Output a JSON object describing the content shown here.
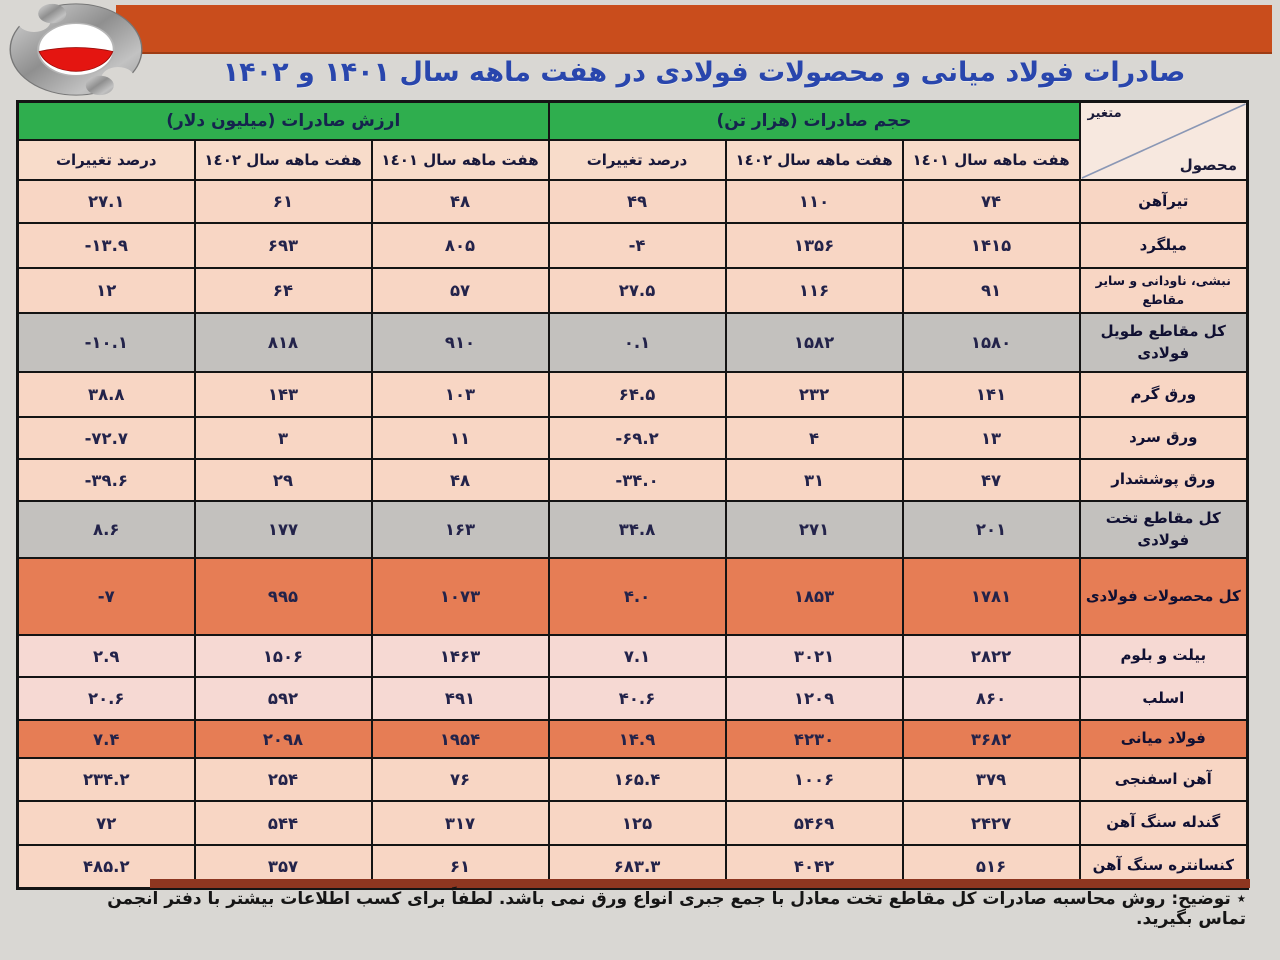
{
  "theme": {
    "banner_orange": "#c94d1c",
    "header_green": "#2fae4e",
    "row_pink": "#f8d6c4",
    "row_pink_light": "#f6d9d3",
    "row_gray": "#c3c1be",
    "row_orange": "#e67d55",
    "subheader_pink": "#f8dcca",
    "corner_bg": "#f7e8df",
    "title_blue": "#2946ad",
    "text_navy": "#23234a",
    "border_black": "#141414",
    "shadow_brown": "#8e3620",
    "page_bg": "#d9d7d3",
    "logo_red": "#e41511"
  },
  "header": {
    "title": "صادرات فولاد میانی و محصولات فولادی در هفت ماهه سال ۱۴۰۱ و ۱۴۰۲"
  },
  "table": {
    "corner": {
      "variable": "متغیر",
      "product": "محصول"
    },
    "groups": [
      {
        "label": "ارزش صادرات (میلیون دلار)"
      },
      {
        "label": "حجم صادرات (هزار تن)"
      }
    ],
    "sub_headers": [
      "درصد تغییرات",
      "هفت ماهه سال ١٤٠٢",
      "هفت ماهه سال ١٤٠١",
      "درصد تغییرات",
      "هفت ماهه سال ١٤٠٢",
      "هفت ماهه سال ١٤٠١"
    ],
    "rows": [
      {
        "product": "تیرآهن",
        "style": "normal",
        "cells": [
          "۲۷.۱",
          "۶۱",
          "۴۸",
          "۴۹",
          "۱۱۰",
          "۷۴"
        ]
      },
      {
        "product": "میلگرد",
        "style": "normal",
        "cells": [
          "-۱۳.۹",
          "۶۹۳",
          "۸۰۵",
          "-۴",
          "۱۳۵۶",
          "۱۴۱۵"
        ]
      },
      {
        "product": "نبشی، ناودانی و سایر مقاطع",
        "style": "normal",
        "cells": [
          "۱۲",
          "۶۴",
          "۵۷",
          "۲۷.۵",
          "۱۱۶",
          "۹۱"
        ]
      },
      {
        "product": "کل مقاطع طویل فولادی",
        "style": "subtotal",
        "cells": [
          "-۱۰.۱",
          "۸۱۸",
          "۹۱۰",
          "۰.۱",
          "۱۵۸۲",
          "۱۵۸۰"
        ]
      },
      {
        "product": "ورق گرم",
        "style": "normal",
        "cells": [
          "۳۸.۸",
          "۱۴۳",
          "۱۰۳",
          "۶۴.۵",
          "۲۳۲",
          "۱۴۱"
        ]
      },
      {
        "product": "ورق سرد",
        "style": "normal",
        "cells": [
          "-۷۲.۷",
          "۳",
          "۱۱",
          "-۶۹.۲",
          "۴",
          "۱۳"
        ]
      },
      {
        "product": "ورق پوششدار",
        "style": "normal",
        "cells": [
          "-۳۹.۶",
          "۲۹",
          "۴۸",
          "-۳۴.۰",
          "۳۱",
          "۴۷"
        ]
      },
      {
        "product": "کل مقاطع تخت فولادی",
        "style": "subtotal",
        "cells": [
          "۸.۶",
          "۱۷۷",
          "۱۶۳",
          "۳۴.۸",
          "۲۷۱",
          "۲۰۱"
        ]
      },
      {
        "product": "کل محصولات فولادی",
        "style": "total",
        "cells": [
          "-۷",
          "۹۹۵",
          "۱۰۷۳",
          "۴.۰",
          "۱۸۵۳",
          "۱۷۸۱"
        ]
      },
      {
        "product": "بیلت و بلوم",
        "style": "light",
        "cells": [
          "۲.۹",
          "۱۵۰۶",
          "۱۴۶۳",
          "۷.۱",
          "۳۰۲۱",
          "۲۸۲۲"
        ]
      },
      {
        "product": "اسلب",
        "style": "light",
        "cells": [
          "۲۰.۶",
          "۵۹۲",
          "۴۹۱",
          "۴۰.۶",
          "۱۲۰۹",
          "۸۶۰"
        ]
      },
      {
        "product": "فولاد میانی",
        "style": "total",
        "cells": [
          "۷.۴",
          "۲۰۹۸",
          "۱۹۵۴",
          "۱۴.۹",
          "۴۲۳۰",
          "۳۶۸۲"
        ]
      },
      {
        "product": "آهن اسفنجی",
        "style": "normal",
        "cells": [
          "۲۳۴.۲",
          "۲۵۴",
          "۷۶",
          "۱۶۵.۴",
          "۱۰۰۶",
          "۳۷۹"
        ]
      },
      {
        "product": "گندله سنگ آهن",
        "style": "normal",
        "cells": [
          "۷۲",
          "۵۴۴",
          "۳۱۷",
          "۱۲۵",
          "۵۴۶۹",
          "۲۴۲۷"
        ]
      },
      {
        "product": "کنسانتره سنگ آهن",
        "style": "normal",
        "cells": [
          "۴۸۵.۲",
          "۳۵۷",
          "۶۱",
          "۶۸۳.۳",
          "۴۰۴۲",
          "۵۱۶"
        ]
      }
    ]
  },
  "footnote": {
    "text": "٭ توضیح: روش محاسبه صادرات کل مقاطع تخت معادل با جمع جبری انواع ورق نمی باشد. لطفاً برای کسب اطلاعات بیشتر با دفتر انجمن تماس بگیرید."
  }
}
